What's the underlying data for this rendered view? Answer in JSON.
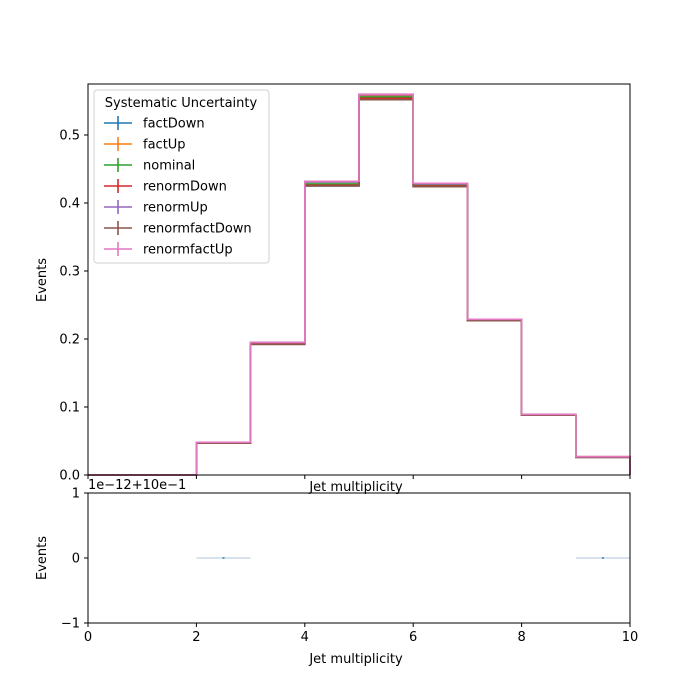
{
  "chart_data": [
    {
      "type": "line",
      "drawstyle": "steps",
      "xlabel": "Jet multiplicity",
      "ylabel": "Events",
      "xlim": [
        0,
        10
      ],
      "ylim": [
        0,
        0.575
      ],
      "x_ticks": [
        0,
        2,
        4,
        6,
        8,
        10
      ],
      "y_ticks": [
        "0.0",
        "0.1",
        "0.2",
        "0.3",
        "0.4",
        "0.5"
      ],
      "y_tick_values": [
        0,
        0.1,
        0.2,
        0.3,
        0.4,
        0.5
      ],
      "bin_edges": [
        0,
        1,
        2,
        3,
        4,
        5,
        6,
        7,
        8,
        9,
        10
      ],
      "legend": {
        "title": "Systematic Uncertainty",
        "placement": "upper-left"
      },
      "series": [
        {
          "name": "factDown",
          "color": "#1f77b4",
          "values": [
            0,
            0,
            0.047,
            0.193,
            0.425,
            0.553,
            0.424,
            0.227,
            0.088,
            0.026
          ]
        },
        {
          "name": "factUp",
          "color": "#ff7f0e",
          "values": [
            0,
            0,
            0.048,
            0.195,
            0.431,
            0.558,
            0.428,
            0.229,
            0.089,
            0.027
          ]
        },
        {
          "name": "nominal",
          "color": "#2ca02c",
          "values": [
            0,
            0,
            0.047,
            0.194,
            0.428,
            0.556,
            0.426,
            0.228,
            0.088,
            0.026
          ]
        },
        {
          "name": "renormDown",
          "color": "#d62728",
          "values": [
            0,
            0,
            0.047,
            0.193,
            0.426,
            0.554,
            0.425,
            0.227,
            0.088,
            0.026
          ]
        },
        {
          "name": "renormUp",
          "color": "#9467bd",
          "values": [
            0,
            0,
            0.048,
            0.195,
            0.431,
            0.559,
            0.428,
            0.229,
            0.089,
            0.027
          ]
        },
        {
          "name": "renormfactDown",
          "color": "#8c564b",
          "values": [
            0,
            0,
            0.047,
            0.192,
            0.425,
            0.552,
            0.424,
            0.227,
            0.088,
            0.026
          ]
        },
        {
          "name": "renormfactUp",
          "color": "#e377c2",
          "values": [
            0,
            0,
            0.048,
            0.195,
            0.432,
            0.56,
            0.429,
            0.229,
            0.089,
            0.027
          ]
        }
      ]
    },
    {
      "type": "line",
      "xlabel": "Jet multiplicity",
      "ylabel": "Events",
      "xlim": [
        0,
        10
      ],
      "ylim": [
        -1,
        1
      ],
      "x_ticks": [
        "0",
        "2",
        "4",
        "6",
        "8",
        "10"
      ],
      "x_tick_values": [
        0,
        2,
        4,
        6,
        8,
        10
      ],
      "y_ticks": [
        "−1",
        "0",
        "1"
      ],
      "y_tick_values": [
        -1,
        0,
        1
      ],
      "offset_text": "1e−12+10e−1",
      "segments": [
        {
          "x": [
            2,
            3
          ],
          "y": 0,
          "color": "#1f77b4"
        },
        {
          "x": [
            9,
            10
          ],
          "y": 0,
          "color": "#1f77b4"
        }
      ]
    }
  ]
}
